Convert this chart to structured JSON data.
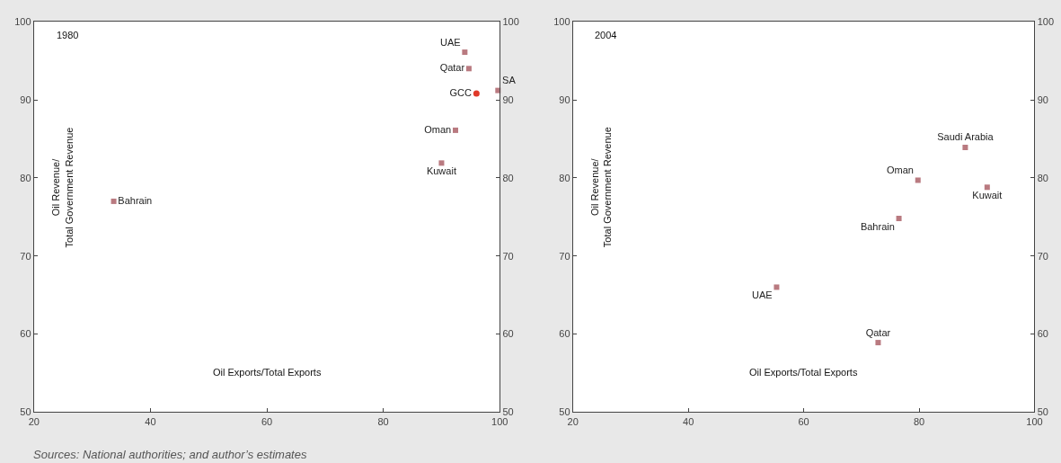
{
  "chart_data": [
    {
      "type": "scatter",
      "title": "1980",
      "xlabel": "Oil Exports/Total Exports",
      "ylabel": "Oil Revenue/\nTotal Government Revenue",
      "xlim": [
        20,
        100
      ],
      "xticks": [
        20,
        40,
        60,
        80,
        100
      ],
      "ylim": [
        50,
        100
      ],
      "yticks": [
        50,
        60,
        70,
        80,
        90,
        100
      ],
      "y2lim": [
        50,
        100
      ],
      "y2ticks": [
        50,
        60,
        70,
        80,
        90,
        100
      ],
      "grid": false,
      "legend": false,
      "marker": "square",
      "series": [
        {
          "name": "UAE",
          "color": "#b97a80",
          "x": [
            94.0
          ],
          "values": [
            96.1
          ]
        },
        {
          "name": "Qatar",
          "color": "#b97a80",
          "x": [
            94.7
          ],
          "values": [
            94.0
          ]
        },
        {
          "name": "SA",
          "color": "#b97a80",
          "x": [
            99.7
          ],
          "values": [
            91.2
          ]
        },
        {
          "name": "GCC",
          "color": "#e03a2a",
          "marker": "circle",
          "x": [
            96.0
          ],
          "values": [
            90.8
          ]
        },
        {
          "name": "Oman",
          "color": "#b97a80",
          "x": [
            92.4
          ],
          "values": [
            86.1
          ]
        },
        {
          "name": "Kuwait",
          "color": "#b97a80",
          "x": [
            90.0
          ],
          "values": [
            81.9
          ]
        },
        {
          "name": "Bahrain",
          "color": "#b97a80",
          "x": [
            33.7
          ],
          "values": [
            77.0
          ]
        }
      ],
      "annotations": [
        "Sources: National authorities; and author’s estimates"
      ]
    },
    {
      "type": "scatter",
      "title": "2004",
      "xlabel": "Oil Exports/Total Exports",
      "ylabel": "Oil Revenue/\nTotal Government Revenue",
      "xlim": [
        20,
        100
      ],
      "xticks": [
        20,
        40,
        60,
        80,
        100
      ],
      "ylim": [
        50,
        100
      ],
      "yticks": [
        50,
        60,
        70,
        80,
        90,
        100
      ],
      "y2lim": [
        50,
        100
      ],
      "y2ticks": [
        50,
        60,
        70,
        80,
        90,
        100
      ],
      "grid": false,
      "legend": false,
      "marker": "square",
      "series": [
        {
          "name": "Saudi Arabia",
          "color": "#b97a80",
          "x": [
            88.0
          ],
          "values": [
            83.9
          ]
        },
        {
          "name": "Oman",
          "color": "#b97a80",
          "x": [
            79.8
          ],
          "values": [
            79.7
          ]
        },
        {
          "name": "Kuwait",
          "color": "#b97a80",
          "x": [
            91.8
          ],
          "values": [
            78.8
          ]
        },
        {
          "name": "Bahrain",
          "color": "#b97a80",
          "x": [
            76.5
          ],
          "values": [
            74.8
          ]
        },
        {
          "name": "UAE",
          "color": "#b97a80",
          "x": [
            55.3
          ],
          "values": [
            66.0
          ]
        },
        {
          "name": "Qatar",
          "color": "#b97a80",
          "x": [
            72.9
          ],
          "values": [
            58.9
          ]
        }
      ]
    }
  ]
}
